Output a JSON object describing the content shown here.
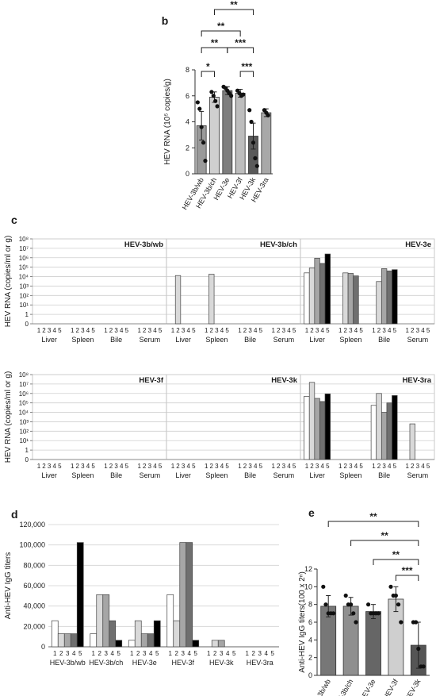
{
  "chart_data": [
    {
      "panel": "b",
      "type": "bar",
      "ylabel": "HEV RNA (10⁵ copies/g)",
      "ylim": [
        0,
        8
      ],
      "yticks": [
        0,
        2,
        4,
        6,
        8
      ],
      "categories": [
        "HEV-3b/wb",
        "HEV-3b/ch",
        "HEV-3e",
        "HEV-3f",
        "HEV-3k",
        "HEV-3ra"
      ],
      "values": [
        3.7,
        5.9,
        6.4,
        6.2,
        2.9,
        4.7
      ],
      "errors": [
        1.1,
        0.4,
        0.3,
        0.3,
        1.0,
        0.3
      ],
      "colors": [
        "#9a9a9a",
        "#cfcfcf",
        "#7e7e7e",
        "#bdbdbd",
        "#5a5a5a",
        "#a8a8a8"
      ],
      "points": [
        [
          5.5,
          5.0,
          3.6,
          2.4,
          1.0
        ],
        [
          6.3,
          6.0,
          5.6,
          5.2
        ],
        [
          6.7,
          6.6,
          6.4,
          6.2,
          6.0
        ],
        [
          6.4,
          6.2,
          6.0,
          6.1
        ],
        [
          4.9,
          4.0,
          2.4,
          1.2,
          0.6
        ],
        [
          4.9,
          4.7,
          4.5
        ]
      ],
      "significance": [
        {
          "from": 0,
          "to": 1,
          "label": "*"
        },
        {
          "from": 0,
          "to": 2,
          "label": "**"
        },
        {
          "from": 2,
          "to": 4,
          "label": "***"
        },
        {
          "from": 3,
          "to": 4,
          "label": "***"
        },
        {
          "from": 0,
          "to": 3,
          "label": "**"
        },
        {
          "from": 1,
          "to": 4,
          "label": "**"
        }
      ]
    },
    {
      "panel": "c",
      "type": "bar",
      "scale": "log10",
      "ylabel": "HEV RNA (copies/ml or g)",
      "yticks": [
        "0",
        "1",
        "10¹",
        "10²",
        "10³",
        "10⁴",
        "10⁵",
        "10⁶",
        "10⁷",
        "10⁸"
      ],
      "tissues": [
        "Liver",
        "Spleen",
        "Bile",
        "Serum"
      ],
      "animal_labels": [
        "1",
        "2",
        "3",
        "4",
        "5"
      ],
      "animal_colors": [
        "#ffffff",
        "#d9d9d9",
        "#a6a6a6",
        "#6f6f6f",
        "#000000"
      ],
      "subpanels": [
        {
          "title": "HEV-3b/wb",
          "values": [
            [
              0,
              0,
              0,
              0,
              0
            ],
            [
              0,
              0,
              0,
              0,
              0
            ],
            [
              0,
              0,
              0,
              0,
              0
            ],
            [
              0,
              0,
              0,
              0,
              0
            ]
          ]
        },
        {
          "title": "HEV-3b/ch",
          "values": [
            [
              0,
              13000,
              0,
              0,
              0
            ],
            [
              0,
              18000,
              0,
              0,
              0
            ],
            [
              0,
              0,
              0,
              0,
              0
            ],
            [
              0,
              0,
              0,
              0,
              0
            ]
          ]
        },
        {
          "title": "HEV-3e",
          "values": [
            [
              25000,
              80000,
              900000,
              250000,
              2500000
            ],
            [
              0,
              25000,
              22000,
              12000,
              0
            ],
            [
              0,
              3000,
              70000,
              40000,
              55000
            ],
            [
              0,
              0,
              0,
              0,
              0
            ]
          ]
        },
        {
          "title": "HEV-3f",
          "values": [
            [
              0,
              0,
              0,
              0,
              0
            ],
            [
              0,
              0,
              0,
              0,
              0
            ],
            [
              0,
              0,
              0,
              0,
              0
            ],
            [
              0,
              0,
              0,
              0,
              0
            ]
          ]
        },
        {
          "title": "HEV-3k",
          "values": [
            [
              0,
              0,
              0,
              0,
              0
            ],
            [
              0,
              0,
              0,
              0,
              0
            ],
            [
              0,
              0,
              0,
              0,
              0
            ],
            [
              0,
              0,
              0,
              0,
              0
            ]
          ]
        },
        {
          "title": "HEV-3ra",
          "values": [
            [
              500000,
              15000000,
              300000,
              140000,
              900000
            ],
            [
              0,
              0,
              0,
              0,
              0
            ],
            [
              55000,
              1000000,
              10000,
              100000,
              600000
            ],
            [
              0,
              600,
              0,
              0,
              0
            ]
          ]
        }
      ]
    },
    {
      "panel": "d",
      "type": "bar",
      "ylabel": "Anti-HEV IgG titers",
      "ylim": [
        0,
        120000
      ],
      "yticks": [
        "0",
        "20,000",
        "40,000",
        "60,000",
        "80,000",
        "100,000",
        "120,000"
      ],
      "animal_labels": [
        "1",
        "2",
        "3",
        "4",
        "5"
      ],
      "animal_colors": [
        "#ffffff",
        "#d9d9d9",
        "#a6a6a6",
        "#6f6f6f",
        "#000000"
      ],
      "categories": [
        "HEV-3b/wb",
        "HEV-3b/ch",
        "HEV-3e",
        "HEV-3f",
        "HEV-3k",
        "HEV-3ra"
      ],
      "values": [
        [
          25600,
          12800,
          12800,
          12800,
          102400
        ],
        [
          12800,
          51200,
          51200,
          25600,
          6400
        ],
        [
          6400,
          25600,
          12800,
          12800,
          25600
        ],
        [
          51200,
          25600,
          102400,
          102400,
          6400
        ],
        [
          0,
          6400,
          6400,
          0,
          0
        ],
        [
          0,
          0,
          0,
          0,
          0
        ]
      ]
    },
    {
      "panel": "e",
      "type": "bar",
      "ylabel": "Anti-HEV IgG titers(100 x 2ⁿ)",
      "ylim": [
        0,
        12
      ],
      "yticks": [
        0,
        2,
        4,
        6,
        8,
        10,
        12
      ],
      "categories": [
        "HEV-3b/wb",
        "HEV-3b/ch",
        "HEV-3e",
        "HEV-3f",
        "HEV-3k"
      ],
      "values": [
        7.8,
        7.8,
        7.2,
        8.6,
        3.4
      ],
      "errors": [
        1.2,
        1.0,
        0.8,
        1.4,
        2.6
      ],
      "colors": [
        "#777777",
        "#8f8f8f",
        "#666666",
        "#cfcfcf",
        "#555555"
      ],
      "points": [
        [
          10.0,
          8.0,
          7.0,
          7.0,
          7.0
        ],
        [
          9.0,
          8.0,
          8.0,
          7.0,
          6.0
        ],
        [
          8.0,
          7.0,
          7.0,
          7.0,
          7.0
        ],
        [
          10.0,
          9.0,
          9.0,
          8.0,
          6.0
        ],
        [
          6.0,
          6.0,
          3.0,
          1.0,
          1.0
        ]
      ],
      "significance": [
        {
          "from": 0,
          "to": 4,
          "label": "**"
        },
        {
          "from": 1,
          "to": 4,
          "label": "**"
        },
        {
          "from": 2,
          "to": 4,
          "label": "**"
        },
        {
          "from": 3,
          "to": 4,
          "label": "***"
        }
      ]
    }
  ]
}
